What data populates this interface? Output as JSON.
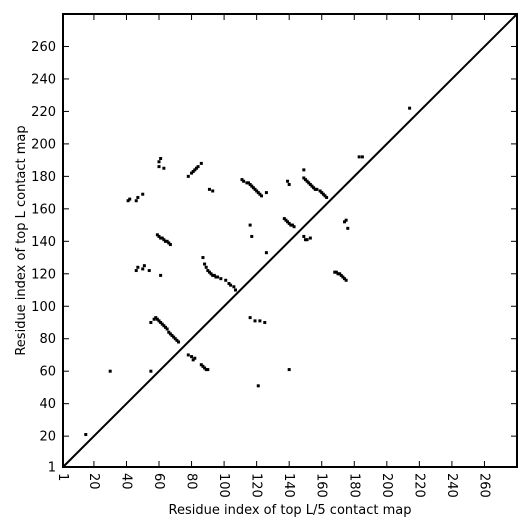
{
  "chart_data": {
    "type": "scatter",
    "title": "",
    "xlabel": "Residue index of top L/5 contact map",
    "ylabel": "Residue index of top L contact map",
    "xlim": [
      1,
      280
    ],
    "ylim": [
      1,
      280
    ],
    "xticks": [
      1,
      20,
      40,
      60,
      80,
      100,
      120,
      140,
      160,
      180,
      200,
      220,
      240,
      260
    ],
    "yticks": [
      1,
      20,
      40,
      60,
      80,
      100,
      120,
      140,
      160,
      180,
      200,
      220,
      240,
      260
    ],
    "diagonal": true,
    "grid": false,
    "marker_color": "#000000",
    "series": [
      {
        "points": [
          [
            15,
            21
          ],
          [
            30,
            60
          ],
          [
            55,
            60
          ],
          [
            41,
            165
          ],
          [
            42,
            166
          ],
          [
            46,
            165
          ],
          [
            47,
            167
          ],
          [
            50,
            169
          ],
          [
            46,
            122
          ],
          [
            47,
            124
          ],
          [
            50,
            123
          ],
          [
            51,
            125
          ],
          [
            54,
            122
          ],
          [
            61,
            119
          ],
          [
            60,
            186
          ],
          [
            60,
            189
          ],
          [
            61,
            191
          ],
          [
            63,
            185
          ],
          [
            78,
            180
          ],
          [
            80,
            182
          ],
          [
            81,
            183
          ],
          [
            82,
            184
          ],
          [
            83,
            185
          ],
          [
            84,
            186
          ],
          [
            86,
            188
          ],
          [
            91,
            172
          ],
          [
            93,
            171
          ],
          [
            59,
            144
          ],
          [
            60,
            143
          ],
          [
            61,
            142
          ],
          [
            62,
            142
          ],
          [
            63,
            141
          ],
          [
            64,
            140
          ],
          [
            65,
            140
          ],
          [
            66,
            139
          ],
          [
            67,
            138
          ],
          [
            87,
            130
          ],
          [
            88,
            126
          ],
          [
            89,
            124
          ],
          [
            90,
            122
          ],
          [
            91,
            121
          ],
          [
            92,
            120
          ],
          [
            93,
            119
          ],
          [
            94,
            119
          ],
          [
            95,
            118
          ],
          [
            96,
            118
          ],
          [
            98,
            117
          ],
          [
            101,
            116
          ],
          [
            103,
            114
          ],
          [
            104,
            113
          ],
          [
            106,
            112
          ],
          [
            107,
            110
          ],
          [
            55,
            90
          ],
          [
            57,
            92
          ],
          [
            58,
            93
          ],
          [
            59,
            92
          ],
          [
            60,
            91
          ],
          [
            61,
            90
          ],
          [
            62,
            89
          ],
          [
            63,
            88
          ],
          [
            64,
            87
          ],
          [
            65,
            86
          ],
          [
            66,
            84
          ],
          [
            67,
            83
          ],
          [
            68,
            82
          ],
          [
            69,
            81
          ],
          [
            70,
            80
          ],
          [
            71,
            79
          ],
          [
            72,
            78
          ],
          [
            78,
            70
          ],
          [
            80,
            69
          ],
          [
            81,
            67
          ],
          [
            82,
            68
          ],
          [
            86,
            64
          ],
          [
            87,
            63
          ],
          [
            88,
            62
          ],
          [
            89,
            61
          ],
          [
            90,
            61
          ],
          [
            111,
            178
          ],
          [
            112,
            177
          ],
          [
            114,
            176
          ],
          [
            115,
            176
          ],
          [
            116,
            175
          ],
          [
            117,
            174
          ],
          [
            118,
            173
          ],
          [
            119,
            172
          ],
          [
            120,
            171
          ],
          [
            121,
            170
          ],
          [
            122,
            169
          ],
          [
            123,
            168
          ],
          [
            126,
            170
          ],
          [
            116,
            150
          ],
          [
            117,
            143
          ],
          [
            126,
            133
          ],
          [
            116,
            93
          ],
          [
            119,
            91
          ],
          [
            122,
            91
          ],
          [
            125,
            90
          ],
          [
            121,
            51
          ],
          [
            137,
            154
          ],
          [
            138,
            153
          ],
          [
            139,
            152
          ],
          [
            140,
            151
          ],
          [
            141,
            150
          ],
          [
            142,
            150
          ],
          [
            143,
            149
          ],
          [
            139,
            177
          ],
          [
            140,
            175
          ],
          [
            149,
            184
          ],
          [
            149,
            179
          ],
          [
            150,
            178
          ],
          [
            151,
            177
          ],
          [
            152,
            176
          ],
          [
            153,
            175
          ],
          [
            154,
            174
          ],
          [
            155,
            173
          ],
          [
            156,
            172
          ],
          [
            157,
            172
          ],
          [
            159,
            171
          ],
          [
            160,
            170
          ],
          [
            161,
            169
          ],
          [
            162,
            168
          ],
          [
            163,
            167
          ],
          [
            149,
            143
          ],
          [
            150,
            141
          ],
          [
            151,
            141
          ],
          [
            153,
            142
          ],
          [
            168,
            121
          ],
          [
            169,
            121
          ],
          [
            170,
            120
          ],
          [
            171,
            120
          ],
          [
            172,
            119
          ],
          [
            173,
            118
          ],
          [
            174,
            117
          ],
          [
            175,
            116
          ],
          [
            174,
            152
          ],
          [
            175,
            153
          ],
          [
            176,
            148
          ],
          [
            140,
            61
          ],
          [
            183,
            192
          ],
          [
            185,
            192
          ],
          [
            214,
            222
          ]
        ]
      }
    ]
  }
}
